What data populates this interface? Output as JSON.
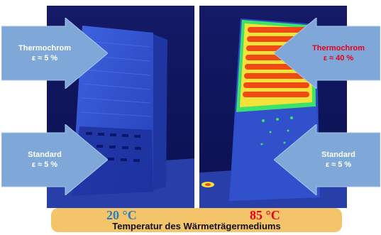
{
  "arrows": {
    "top_left": {
      "label": "Thermochrom",
      "value": "ε ≈ 5 %",
      "text_color": "#ffffff"
    },
    "top_right": {
      "label": "Thermochrom",
      "value": "ε ≈ 40 %",
      "text_color": "#e8001c"
    },
    "bottom_left": {
      "label": "Standard",
      "value": "ε ≈ 5 %",
      "text_color": "#ffffff"
    },
    "bottom_right": {
      "label": "Standard",
      "value": "ε ≈ 5 %",
      "text_color": "#ffffff"
    }
  },
  "temperatures": {
    "left": {
      "value": "20 °C",
      "color": "#2a7ec0"
    },
    "right": {
      "value": "85 °C",
      "color": "#e8001c"
    }
  },
  "caption": "Temperatur des Wärmeträgermediums",
  "colors": {
    "arrow_fill": "#7fa8d8",
    "bar_fill": "#f4c46a",
    "thermal_background": "#0a0f4a",
    "thermal_collector_cold": "#2d4fd0",
    "thermal_hot_band": "#f04a14"
  }
}
